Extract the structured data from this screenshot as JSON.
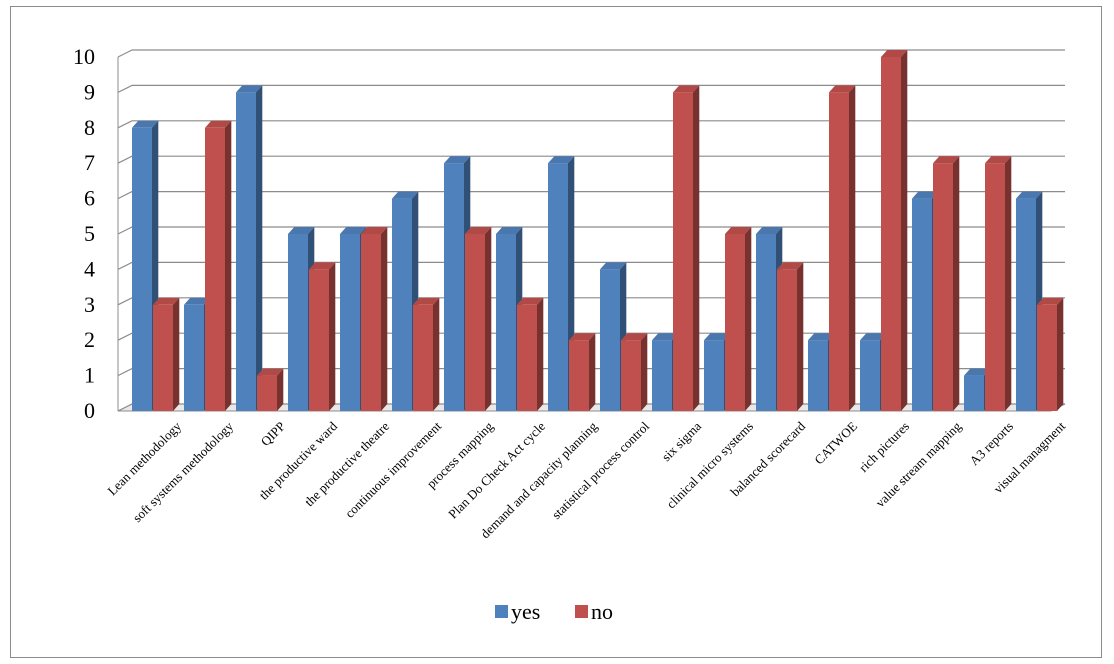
{
  "chart_data": {
    "type": "bar",
    "style": "3d-clustered-column",
    "categories": [
      "Lean methodology",
      "soft systems methodology",
      "QIPP",
      "the productive ward",
      "the productive theatre",
      "continuous improvement",
      "process mapping",
      "Plan Do Check Act cycle",
      "demand and capacity planning",
      "statistical process control",
      "six sigma",
      "clinical micro systems",
      "balanced scorecard",
      "CATWOE",
      "rich pictures",
      "value stream mapping",
      "A3 reports",
      "visual managment"
    ],
    "series": [
      {
        "name": "yes",
        "color": "#4F81BD",
        "values": [
          8,
          3,
          9,
          5,
          5,
          6,
          7,
          5,
          7,
          4,
          2,
          2,
          5,
          2,
          2,
          6,
          1,
          6
        ]
      },
      {
        "name": "no",
        "color": "#C0504D",
        "values": [
          3,
          8,
          1,
          4,
          5,
          3,
          5,
          3,
          2,
          2,
          9,
          5,
          4,
          9,
          10,
          7,
          7,
          3
        ]
      }
    ],
    "yticks": [
      "0",
      "1",
      "2",
      "3",
      "4",
      "5",
      "6",
      "7",
      "8",
      "9",
      "10"
    ],
    "ylim": [
      0,
      10
    ],
    "grid": true,
    "legend": "bottom",
    "title": "",
    "xlabel": "",
    "ylabel": ""
  }
}
